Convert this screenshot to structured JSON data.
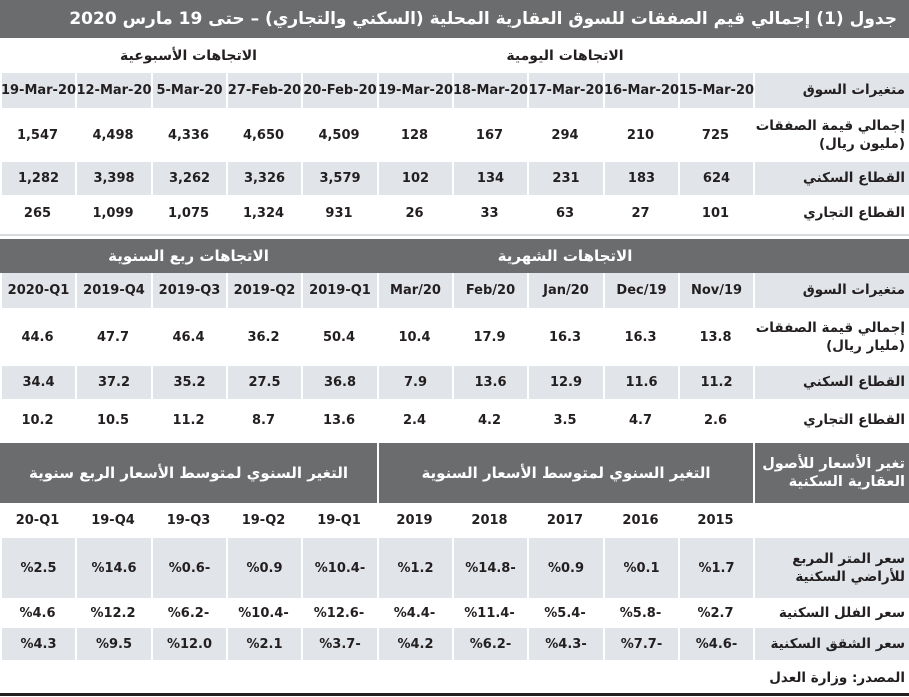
{
  "title": "جدول (1) إجمالي قيم الصفقات للسوق العقارية المحلية (السكني والتجاري) – حتى 19 مارس 2020",
  "section1": {
    "groups": {
      "daily": "الاتجاهات اليومية",
      "weekly": "الاتجاهات الأسبوعية"
    },
    "header_label": "متغيرات السوق",
    "columns": [
      "15-Mar-20",
      "16-Mar-20",
      "17-Mar-20",
      "18-Mar-20",
      "19-Mar-20",
      "20-Feb-20",
      "27-Feb-20",
      "5-Mar-20",
      "12-Mar-20",
      "19-Mar-20"
    ],
    "rows": [
      {
        "label": "إجمالي قيمة الصفقات (مليون ريال)",
        "values": [
          "725",
          "210",
          "294",
          "167",
          "128",
          "4,509",
          "4,650",
          "4,336",
          "4,498",
          "1,547"
        ]
      },
      {
        "label": "القطاع السكني",
        "values": [
          "624",
          "183",
          "231",
          "134",
          "102",
          "3,579",
          "3,326",
          "3,262",
          "3,398",
          "1,282"
        ]
      },
      {
        "label": "القطاع التجاري",
        "values": [
          "101",
          "27",
          "63",
          "33",
          "26",
          "931",
          "1,324",
          "1,075",
          "1,099",
          "265"
        ]
      }
    ]
  },
  "section2": {
    "groups": {
      "monthly": "الاتجاهات الشهرية",
      "quarterly": "الاتجاهات ربع السنوية"
    },
    "header_label": "متغيرات السوق",
    "columns": [
      "Nov/19",
      "Dec/19",
      "Jan/20",
      "Feb/20",
      "Mar/20",
      "2019-Q1",
      "2019-Q2",
      "2019-Q3",
      "2019-Q4",
      "2020-Q1"
    ],
    "rows": [
      {
        "label": "إجمالي قيمة الصفقات (مليار ريال)",
        "values": [
          "13.8",
          "16.3",
          "16.3",
          "17.9",
          "10.4",
          "50.4",
          "36.2",
          "46.4",
          "47.7",
          "44.6"
        ]
      },
      {
        "label": "القطاع السكني",
        "values": [
          "11.2",
          "11.6",
          "12.9",
          "13.6",
          "7.9",
          "36.8",
          "27.5",
          "35.2",
          "37.2",
          "34.4"
        ]
      },
      {
        "label": "القطاع التجاري",
        "values": [
          "2.6",
          "4.7",
          "3.5",
          "4.2",
          "2.4",
          "13.6",
          "8.7",
          "11.2",
          "10.5",
          "10.2"
        ]
      }
    ]
  },
  "section3": {
    "header_label": "تغير الأسعار للأصول العقارية السكنية",
    "groups": {
      "annual": "التغير السنوي لمتوسط الأسعار السنوية",
      "quarterly": "التغير السنوي لمتوسط الأسعار الربع سنوية"
    },
    "columns": [
      "2015",
      "2016",
      "2017",
      "2018",
      "2019",
      "19-Q1",
      "19-Q2",
      "19-Q3",
      "19-Q4",
      "20-Q1"
    ],
    "rows": [
      {
        "label": "سعر المتر المربع للأراضي السكنية",
        "values": [
          "%1.7",
          "%0.1",
          "%0.9",
          "%14.8-",
          "%1.2",
          "%10.4-",
          "%0.9",
          "%0.6-",
          "%14.6",
          "%2.5"
        ]
      },
      {
        "label": "سعر الفلل السكنية",
        "values": [
          "%2.7",
          "%5.8-",
          "%5.4-",
          "%11.4-",
          "%4.4-",
          "%12.6-",
          "%10.4-",
          "%6.2-",
          "%12.2",
          "%4.6"
        ]
      },
      {
        "label": "سعر الشقق السكنية",
        "values": [
          "%4.6-",
          "%7.7-",
          "%4.3-",
          "%6.2-",
          "%4.2",
          "%3.7-",
          "%2.1",
          "%12.0",
          "%9.5",
          "%4.3"
        ]
      }
    ]
  },
  "source": "المصدر: وزارة العدل"
}
